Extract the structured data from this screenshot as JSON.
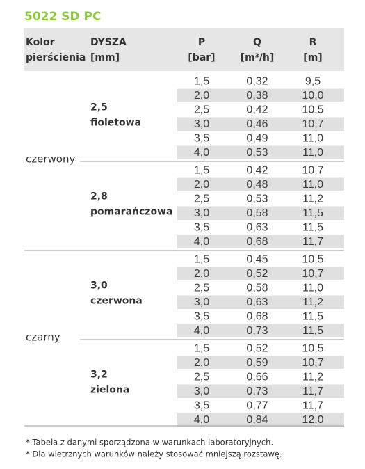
{
  "title": "5022 SD PC",
  "header": {
    "ring": [
      "Kolor",
      "pierścienia"
    ],
    "nozzle": [
      "DYSZA",
      "[mm]"
    ],
    "p": [
      "P",
      "[bar]"
    ],
    "q": [
      "Q",
      "[m³/h]"
    ],
    "r": [
      "R",
      "[m]"
    ]
  },
  "table": {
    "groups": [
      {
        "ring": "czerwony",
        "nozzles": [
          {
            "size": "2,5",
            "color": "fioletowa",
            "rows": [
              [
                "1,5",
                "0,32",
                "9,5"
              ],
              [
                "2,0",
                "0,38",
                "10,0"
              ],
              [
                "2,5",
                "0,42",
                "10,5"
              ],
              [
                "3,0",
                "0,46",
                "10,7"
              ],
              [
                "3,5",
                "0,49",
                "11,0"
              ],
              [
                "4,0",
                "0,53",
                "11,0"
              ]
            ]
          },
          {
            "size": "2,8",
            "color": "pomarańczowa",
            "rows": [
              [
                "1,5",
                "0,42",
                "10,7"
              ],
              [
                "2,0",
                "0,48",
                "11,0"
              ],
              [
                "2,5",
                "0,53",
                "11,2"
              ],
              [
                "3,0",
                "0,58",
                "11,5"
              ],
              [
                "3,5",
                "0,63",
                "11,5"
              ],
              [
                "4,0",
                "0,68",
                "11,7"
              ]
            ]
          }
        ]
      },
      {
        "ring": "czarny",
        "nozzles": [
          {
            "size": "3,0",
            "color": "czerwona",
            "rows": [
              [
                "1,5",
                "0,45",
                "10,5"
              ],
              [
                "2,0",
                "0,52",
                "10,7"
              ],
              [
                "2,5",
                "0,58",
                "11,0"
              ],
              [
                "3,0",
                "0,63",
                "11,2"
              ],
              [
                "3,5",
                "0,68",
                "11,5"
              ],
              [
                "4,0",
                "0,73",
                "11,5"
              ]
            ]
          },
          {
            "size": "3,2",
            "color": "zielona",
            "rows": [
              [
                "1,5",
                "0,52",
                "10,5"
              ],
              [
                "2,0",
                "0,59",
                "10,7"
              ],
              [
                "2,5",
                "0,66",
                "11,2"
              ],
              [
                "3,0",
                "0,73",
                "11,7"
              ],
              [
                "3,5",
                "0,77",
                "11,7"
              ],
              [
                "4,0",
                "0,84",
                "12,0"
              ]
            ]
          }
        ]
      }
    ]
  },
  "footnotes": [
    "* Tabela z danymi sporządzona w warunkach laboratoryjnych.",
    "* Dla wietrznych warunków należy stosować mniejszą rozstawę."
  ]
}
